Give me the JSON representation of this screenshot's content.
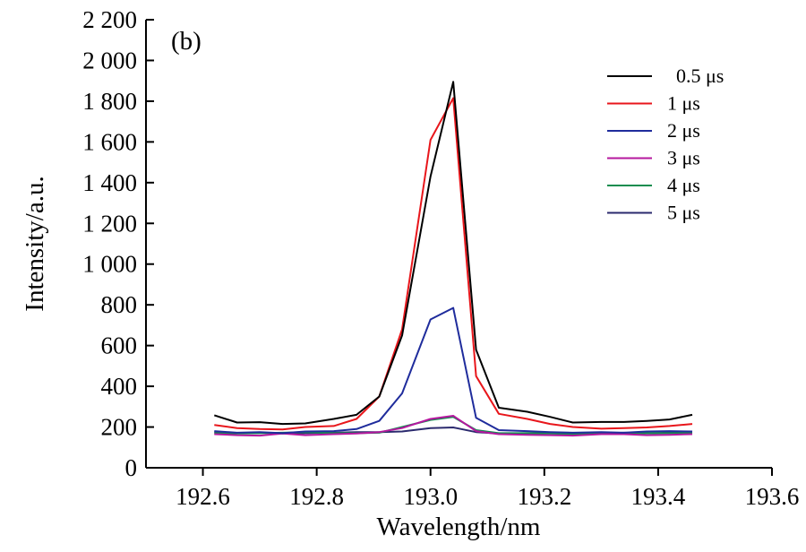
{
  "chart_data": {
    "type": "line",
    "panel_label": "(b)",
    "xlabel": "Wavelength/nm",
    "ylabel": "Intensity/a.u.",
    "xlim": [
      192.5,
      193.6
    ],
    "ylim": [
      0,
      2200
    ],
    "xticks": [
      192.6,
      192.8,
      193.0,
      193.2,
      193.4,
      193.6
    ],
    "xtick_labels": [
      "192.6",
      "192.8",
      "193.0",
      "193.2",
      "193.4",
      "193.6"
    ],
    "yticks": [
      0,
      200,
      400,
      600,
      800,
      1000,
      1200,
      1400,
      1600,
      1800,
      2000,
      2200
    ],
    "ytick_labels": [
      "0",
      "200",
      "400",
      "600",
      "800",
      "1 000",
      "1 200",
      "1 400",
      "1 600",
      "1 800",
      "2 000",
      "2 200"
    ],
    "legend_position": "top-right",
    "grid": false,
    "x": [
      192.62,
      192.66,
      192.7,
      192.74,
      192.78,
      192.83,
      192.87,
      192.91,
      192.95,
      193.0,
      193.04,
      193.08,
      193.12,
      193.17,
      193.21,
      193.25,
      193.3,
      193.34,
      193.38,
      193.42,
      193.46
    ],
    "series": [
      {
        "name": "0.5 μs",
        "color": "#000000",
        "values": [
          258,
          222,
          224,
          215,
          218,
          240,
          260,
          350,
          650,
          1430,
          1895,
          580,
          295,
          275,
          250,
          222,
          225,
          225,
          230,
          237,
          260
        ]
      },
      {
        "name": "1 μs",
        "color": "#e8161b",
        "values": [
          210,
          195,
          190,
          188,
          200,
          205,
          240,
          350,
          680,
          1610,
          1815,
          450,
          265,
          240,
          215,
          200,
          192,
          195,
          198,
          205,
          215
        ]
      },
      {
        "name": "2 μs",
        "color": "#1f2c9c",
        "values": [
          180,
          172,
          175,
          170,
          178,
          180,
          190,
          230,
          365,
          728,
          785,
          245,
          185,
          180,
          175,
          172,
          175,
          172,
          178,
          180,
          178
        ]
      },
      {
        "name": "3 μs",
        "color": "#b5179e",
        "values": [
          165,
          160,
          158,
          168,
          160,
          165,
          168,
          175,
          195,
          240,
          255,
          180,
          165,
          162,
          160,
          158,
          165,
          165,
          160,
          162,
          165
        ]
      },
      {
        "name": "4 μs",
        "color": "#138d4f",
        "values": [
          170,
          168,
          170,
          172,
          175,
          170,
          170,
          172,
          200,
          235,
          250,
          185,
          170,
          170,
          168,
          165,
          170,
          170,
          170,
          170,
          172
        ]
      },
      {
        "name": "5 μs",
        "color": "#2b2a6e",
        "values": [
          175,
          170,
          172,
          168,
          170,
          172,
          175,
          175,
          178,
          195,
          198,
          175,
          168,
          170,
          172,
          170,
          168,
          172,
          170,
          172,
          175
        ]
      }
    ]
  }
}
